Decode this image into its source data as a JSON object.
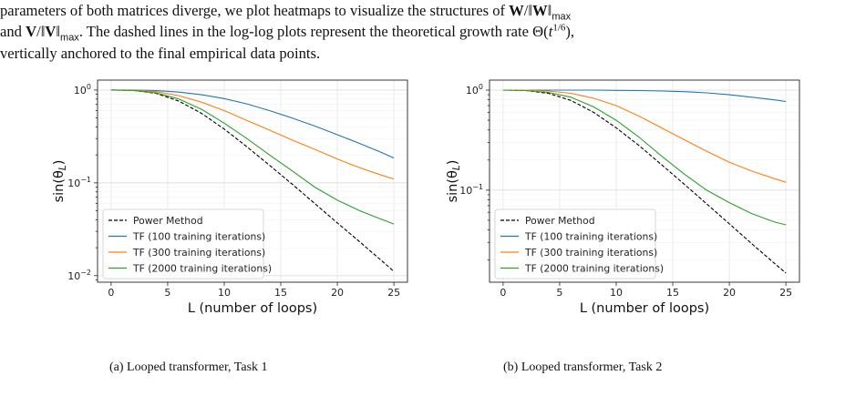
{
  "text": {
    "line1_pre": "parameters of both matrices diverge, we plot heatmaps to visualize the structures of ",
    "w_bold": "W",
    "slash": "/‖",
    "close_norm": "‖",
    "max_sub": "max",
    "line2_and": "and ",
    "v_bold": "V",
    "line2_mid": ". The dashed lines in the log-log plots represent the theoretical growth rate Θ(",
    "t": "t",
    "t_exp": "1/6",
    "close_paren": "),",
    "line3": "vertically anchored to the final empirical data points."
  },
  "captions": {
    "a": "(a) Looped transformer, Task 1",
    "b": "(b) Looped transformer, Task 2"
  },
  "chart_data": [
    {
      "type": "line",
      "xlabel": "L (number of loops)",
      "ylabel": "sin(θ_L)",
      "xlim": [
        -1.2,
        26.2
      ],
      "ylim": [
        0.0085,
        1.28
      ],
      "yscale": "log",
      "xticks": [
        0,
        5,
        10,
        15,
        20,
        25
      ],
      "yticks": [
        {
          "value": 1,
          "base": "10",
          "exp": "0"
        },
        {
          "value": 0.1,
          "base": "10",
          "exp": "−1"
        },
        {
          "value": 0.01,
          "base": "10",
          "exp": "−2"
        }
      ],
      "grid": true,
      "legend": "lower-left",
      "series": [
        {
          "name": "Power Method",
          "color": "#000000",
          "dashed": true,
          "x": [
            0,
            2,
            4,
            6,
            8,
            10,
            12,
            14,
            16,
            18,
            20,
            22,
            24,
            25
          ],
          "values": [
            1.0,
            0.99,
            0.92,
            0.76,
            0.56,
            0.38,
            0.245,
            0.155,
            0.097,
            0.06,
            0.037,
            0.023,
            0.0142,
            0.0111
          ]
        },
        {
          "name": "TF (100 training iterations)",
          "color": "#1f77b4",
          "dashed": false,
          "x": [
            0,
            2,
            4,
            6,
            8,
            10,
            12,
            14,
            16,
            18,
            20,
            22,
            24,
            25
          ],
          "values": [
            1.0,
            1.0,
            0.985,
            0.95,
            0.89,
            0.81,
            0.71,
            0.6,
            0.5,
            0.41,
            0.33,
            0.265,
            0.21,
            0.185
          ]
        },
        {
          "name": "TF (300 training iterations)",
          "color": "#ff7f0e",
          "dashed": false,
          "x": [
            0,
            2,
            4,
            6,
            8,
            10,
            12,
            14,
            16,
            18,
            20,
            22,
            24,
            25
          ],
          "values": [
            1.0,
            0.995,
            0.96,
            0.87,
            0.74,
            0.6,
            0.47,
            0.37,
            0.29,
            0.23,
            0.18,
            0.145,
            0.12,
            0.11
          ]
        },
        {
          "name": "TF (2000 training iterations)",
          "color": "#2ca02c",
          "dashed": false,
          "x": [
            0,
            2,
            4,
            6,
            8,
            10,
            12,
            14,
            16,
            18,
            20,
            22,
            24,
            25
          ],
          "values": [
            1.0,
            0.99,
            0.93,
            0.8,
            0.62,
            0.44,
            0.3,
            0.2,
            0.135,
            0.09,
            0.065,
            0.05,
            0.04,
            0.036
          ]
        }
      ]
    },
    {
      "type": "line",
      "xlabel": "L (number of loops)",
      "ylabel": "sin(θ_L)",
      "xlim": [
        -1.2,
        26.2
      ],
      "ylim": [
        0.012,
        1.26
      ],
      "yscale": "log",
      "xticks": [
        0,
        5,
        10,
        15,
        20,
        25
      ],
      "yticks": [
        {
          "value": 1,
          "base": "10",
          "exp": "0"
        },
        {
          "value": 0.1,
          "base": "10",
          "exp": "−1"
        }
      ],
      "grid": true,
      "legend": "lower-left",
      "series": [
        {
          "name": "Power Method",
          "color": "#000000",
          "dashed": true,
          "x": [
            0,
            2,
            4,
            6,
            8,
            10,
            12,
            14,
            16,
            18,
            20,
            22,
            24,
            25
          ],
          "values": [
            1.0,
            0.99,
            0.93,
            0.79,
            0.6,
            0.42,
            0.28,
            0.18,
            0.115,
            0.073,
            0.046,
            0.029,
            0.0185,
            0.0148
          ]
        },
        {
          "name": "TF (100 training iterations)",
          "color": "#1f77b4",
          "dashed": false,
          "x": [
            0,
            2,
            4,
            6,
            8,
            10,
            12,
            14,
            16,
            18,
            20,
            22,
            24,
            25
          ],
          "values": [
            1.0,
            1.0,
            1.0,
            1.0,
            1.0,
            0.995,
            0.99,
            0.98,
            0.965,
            0.94,
            0.9,
            0.85,
            0.8,
            0.77
          ]
        },
        {
          "name": "TF (300 training iterations)",
          "color": "#ff7f0e",
          "dashed": false,
          "x": [
            0,
            2,
            4,
            6,
            8,
            10,
            12,
            14,
            16,
            18,
            20,
            22,
            24,
            25
          ],
          "values": [
            1.0,
            1.0,
            0.98,
            0.93,
            0.83,
            0.7,
            0.55,
            0.42,
            0.32,
            0.245,
            0.19,
            0.155,
            0.13,
            0.12
          ]
        },
        {
          "name": "TF (2000 training iterations)",
          "color": "#2ca02c",
          "dashed": false,
          "x": [
            0,
            2,
            4,
            6,
            8,
            10,
            12,
            14,
            16,
            18,
            20,
            22,
            24,
            25
          ],
          "values": [
            1.0,
            0.99,
            0.95,
            0.85,
            0.68,
            0.5,
            0.34,
            0.22,
            0.145,
            0.1,
            0.075,
            0.058,
            0.048,
            0.045
          ]
        }
      ]
    }
  ]
}
